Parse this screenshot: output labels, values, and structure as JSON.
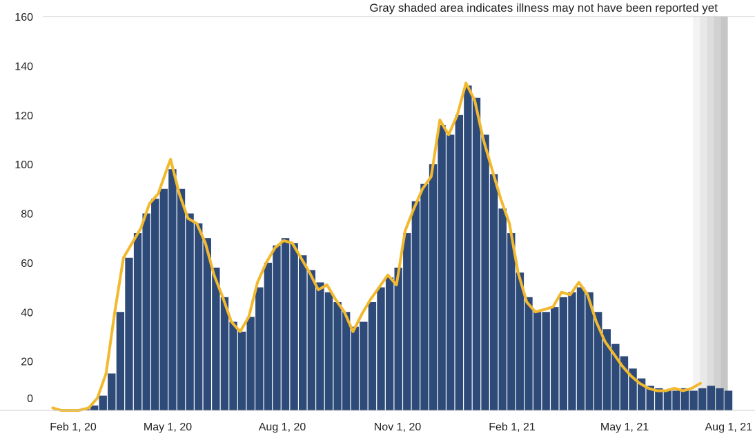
{
  "chart_data": {
    "type": "bar",
    "annotation": "Gray shaded area indicates illness may not have been reported yet",
    "y_ticks": [
      "0",
      "20",
      "40",
      "60",
      "80",
      "100",
      "120",
      "140",
      "160"
    ],
    "x_ticks": [
      "Feb 1, 20",
      "May 1, 20",
      "Aug 1, 20",
      "Nov 1, 20",
      "Feb 1, 21",
      "May 1, 21",
      "Aug 1, 21"
    ],
    "ylim": [
      0,
      160
    ],
    "xlim": [
      "2020-01-24",
      "2021-08-01"
    ],
    "grid": false,
    "colors": {
      "bars": "#2e4a78",
      "moving_average": "#f2b92e",
      "shade": "#9a9a9a",
      "axis": "#c8c8c8"
    },
    "shaded_period": [
      "2021-07-01",
      "2021-07-29"
    ],
    "series": [
      {
        "kind": "bar",
        "values_by_week_start": [
          [
            "2020-02-03",
            0
          ],
          [
            "2020-02-10",
            0
          ],
          [
            "2020-02-17",
            0
          ],
          [
            "2020-02-24",
            1
          ],
          [
            "2020-03-02",
            2
          ],
          [
            "2020-03-09",
            6
          ],
          [
            "2020-03-16",
            15
          ],
          [
            "2020-03-23",
            40
          ],
          [
            "2020-03-30",
            62
          ],
          [
            "2020-04-06",
            72
          ],
          [
            "2020-04-13",
            80
          ],
          [
            "2020-04-20",
            86
          ],
          [
            "2020-04-27",
            90
          ],
          [
            "2020-05-04",
            98
          ],
          [
            "2020-05-11",
            90
          ],
          [
            "2020-05-18",
            80
          ],
          [
            "2020-05-25",
            76
          ],
          [
            "2020-06-01",
            70
          ],
          [
            "2020-06-08",
            58
          ],
          [
            "2020-06-15",
            46
          ],
          [
            "2020-06-22",
            36
          ],
          [
            "2020-06-29",
            32
          ],
          [
            "2020-07-06",
            38
          ],
          [
            "2020-07-13",
            50
          ],
          [
            "2020-07-20",
            60
          ],
          [
            "2020-07-27",
            67
          ],
          [
            "2020-08-03",
            70
          ],
          [
            "2020-08-10",
            68
          ],
          [
            "2020-08-17",
            63
          ],
          [
            "2020-08-24",
            57
          ],
          [
            "2020-08-31",
            52
          ],
          [
            "2020-09-07",
            48
          ],
          [
            "2020-09-14",
            44
          ],
          [
            "2020-09-21",
            40
          ],
          [
            "2020-09-28",
            34
          ],
          [
            "2020-10-05",
            36
          ],
          [
            "2020-10-12",
            44
          ],
          [
            "2020-10-19",
            50
          ],
          [
            "2020-10-26",
            54
          ],
          [
            "2020-11-02",
            58
          ],
          [
            "2020-11-09",
            72
          ],
          [
            "2020-11-16",
            85
          ],
          [
            "2020-11-23",
            92
          ],
          [
            "2020-11-30",
            100
          ],
          [
            "2020-12-07",
            116
          ],
          [
            "2020-12-14",
            112
          ],
          [
            "2020-12-21",
            120
          ],
          [
            "2020-12-28",
            132
          ],
          [
            "2021-01-04",
            127
          ],
          [
            "2021-01-11",
            112
          ],
          [
            "2021-01-18",
            96
          ],
          [
            "2021-01-25",
            82
          ],
          [
            "2021-02-01",
            72
          ],
          [
            "2021-02-08",
            56
          ],
          [
            "2021-02-15",
            46
          ],
          [
            "2021-02-22",
            40
          ],
          [
            "2021-03-01",
            40
          ],
          [
            "2021-03-08",
            42
          ],
          [
            "2021-03-15",
            46
          ],
          [
            "2021-03-22",
            48
          ],
          [
            "2021-03-29",
            50
          ],
          [
            "2021-04-05",
            48
          ],
          [
            "2021-04-12",
            40
          ],
          [
            "2021-04-19",
            33
          ],
          [
            "2021-04-26",
            27
          ],
          [
            "2021-05-03",
            22
          ],
          [
            "2021-05-10",
            17
          ],
          [
            "2021-05-17",
            13
          ],
          [
            "2021-05-24",
            10
          ],
          [
            "2021-05-31",
            9
          ],
          [
            "2021-06-07",
            8
          ],
          [
            "2021-06-14",
            8
          ],
          [
            "2021-06-21",
            9
          ],
          [
            "2021-06-28",
            8
          ],
          [
            "2021-07-05",
            9
          ],
          [
            "2021-07-12",
            10
          ],
          [
            "2021-07-19",
            9
          ],
          [
            "2021-07-26",
            8
          ]
        ]
      },
      {
        "kind": "line",
        "points": [
          [
            "2020-02-01",
            1
          ],
          [
            "2020-02-08",
            0
          ],
          [
            "2020-02-22",
            0
          ],
          [
            "2020-03-01",
            1
          ],
          [
            "2020-03-08",
            5
          ],
          [
            "2020-03-15",
            15
          ],
          [
            "2020-03-22",
            40
          ],
          [
            "2020-03-29",
            62
          ],
          [
            "2020-04-05",
            68
          ],
          [
            "2020-04-12",
            74
          ],
          [
            "2020-04-19",
            84
          ],
          [
            "2020-04-26",
            88
          ],
          [
            "2020-05-03",
            98
          ],
          [
            "2020-05-06",
            102
          ],
          [
            "2020-05-13",
            88
          ],
          [
            "2020-05-20",
            78
          ],
          [
            "2020-05-27",
            76
          ],
          [
            "2020-06-03",
            68
          ],
          [
            "2020-06-10",
            55
          ],
          [
            "2020-06-17",
            46
          ],
          [
            "2020-06-24",
            36
          ],
          [
            "2020-07-01",
            32
          ],
          [
            "2020-07-08",
            38
          ],
          [
            "2020-07-15",
            52
          ],
          [
            "2020-07-22",
            60
          ],
          [
            "2020-07-29",
            66
          ],
          [
            "2020-08-05",
            69
          ],
          [
            "2020-08-12",
            68
          ],
          [
            "2020-08-19",
            62
          ],
          [
            "2020-08-26",
            56
          ],
          [
            "2020-09-02",
            49
          ],
          [
            "2020-09-09",
            51
          ],
          [
            "2020-09-16",
            45
          ],
          [
            "2020-09-23",
            40
          ],
          [
            "2020-09-30",
            32
          ],
          [
            "2020-10-07",
            39
          ],
          [
            "2020-10-14",
            45
          ],
          [
            "2020-10-21",
            50
          ],
          [
            "2020-10-28",
            55
          ],
          [
            "2020-11-04",
            51
          ],
          [
            "2020-11-11",
            73
          ],
          [
            "2020-11-18",
            82
          ],
          [
            "2020-11-25",
            90
          ],
          [
            "2020-12-02",
            95
          ],
          [
            "2020-12-09",
            118
          ],
          [
            "2020-12-16",
            112
          ],
          [
            "2020-12-23",
            120
          ],
          [
            "2020-12-30",
            133
          ],
          [
            "2021-01-06",
            126
          ],
          [
            "2021-01-13",
            110
          ],
          [
            "2021-01-20",
            98
          ],
          [
            "2021-01-27",
            86
          ],
          [
            "2021-02-03",
            76
          ],
          [
            "2021-02-10",
            56
          ],
          [
            "2021-02-17",
            44
          ],
          [
            "2021-02-24",
            40
          ],
          [
            "2021-03-03",
            41
          ],
          [
            "2021-03-10",
            42
          ],
          [
            "2021-03-17",
            48
          ],
          [
            "2021-03-24",
            47
          ],
          [
            "2021-03-31",
            52
          ],
          [
            "2021-04-07",
            47
          ],
          [
            "2021-04-14",
            36
          ],
          [
            "2021-04-21",
            28
          ],
          [
            "2021-04-28",
            23
          ],
          [
            "2021-05-05",
            18
          ],
          [
            "2021-05-12",
            14
          ],
          [
            "2021-05-19",
            11
          ],
          [
            "2021-05-26",
            9
          ],
          [
            "2021-06-02",
            8
          ],
          [
            "2021-06-09",
            8
          ],
          [
            "2021-06-16",
            9
          ],
          [
            "2021-06-23",
            8
          ],
          [
            "2021-06-30",
            9
          ],
          [
            "2021-07-07",
            11
          ]
        ]
      }
    ]
  }
}
